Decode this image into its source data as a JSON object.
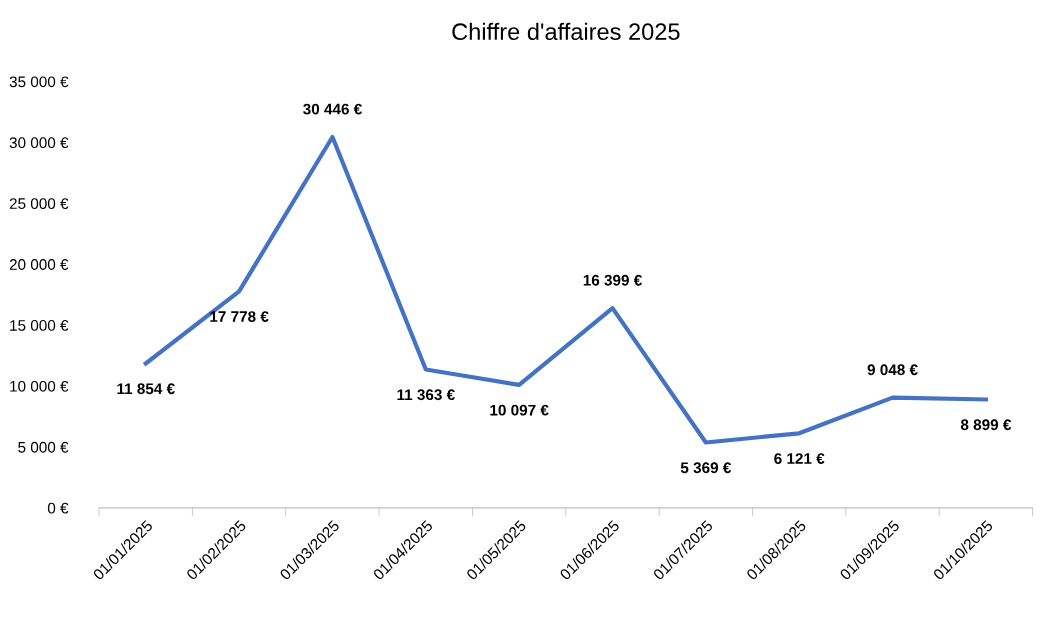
{
  "chart_data": {
    "type": "line",
    "title": "Chiffre d'affaires 2025",
    "categories": [
      "01/01/2025",
      "01/02/2025",
      "01/03/2025",
      "01/04/2025",
      "01/05/2025",
      "01/06/2025",
      "01/07/2025",
      "01/08/2025",
      "01/09/2025",
      "01/10/2025"
    ],
    "series": [
      {
        "color": "#4472c4",
        "values": [
          11854,
          17778,
          30446,
          11363,
          10097,
          16399,
          5369,
          6121,
          9048,
          8899
        ],
        "value_labels": [
          "11 854 €",
          "17 778 €",
          "30 446 €",
          "11 363 €",
          "10 097 €",
          "16 399 €",
          "5 369 €",
          "6 121 €",
          "9 048 €",
          "8 899 €"
        ]
      }
    ],
    "ylim": [
      0,
      35000
    ],
    "yticks": [
      {
        "value": 0,
        "label": "0 €"
      },
      {
        "value": 5000,
        "label": "5 000 €"
      },
      {
        "value": 10000,
        "label": "10 000 €"
      },
      {
        "value": 15000,
        "label": "15 000 €"
      },
      {
        "value": 20000,
        "label": "20 000 €"
      },
      {
        "value": 25000,
        "label": "25 000 €"
      },
      {
        "value": 30000,
        "label": "30 000 €"
      },
      {
        "value": 35000,
        "label": "35 000 €"
      }
    ],
    "grid": false,
    "legend": false,
    "marker": "none",
    "line_style": "solid"
  }
}
